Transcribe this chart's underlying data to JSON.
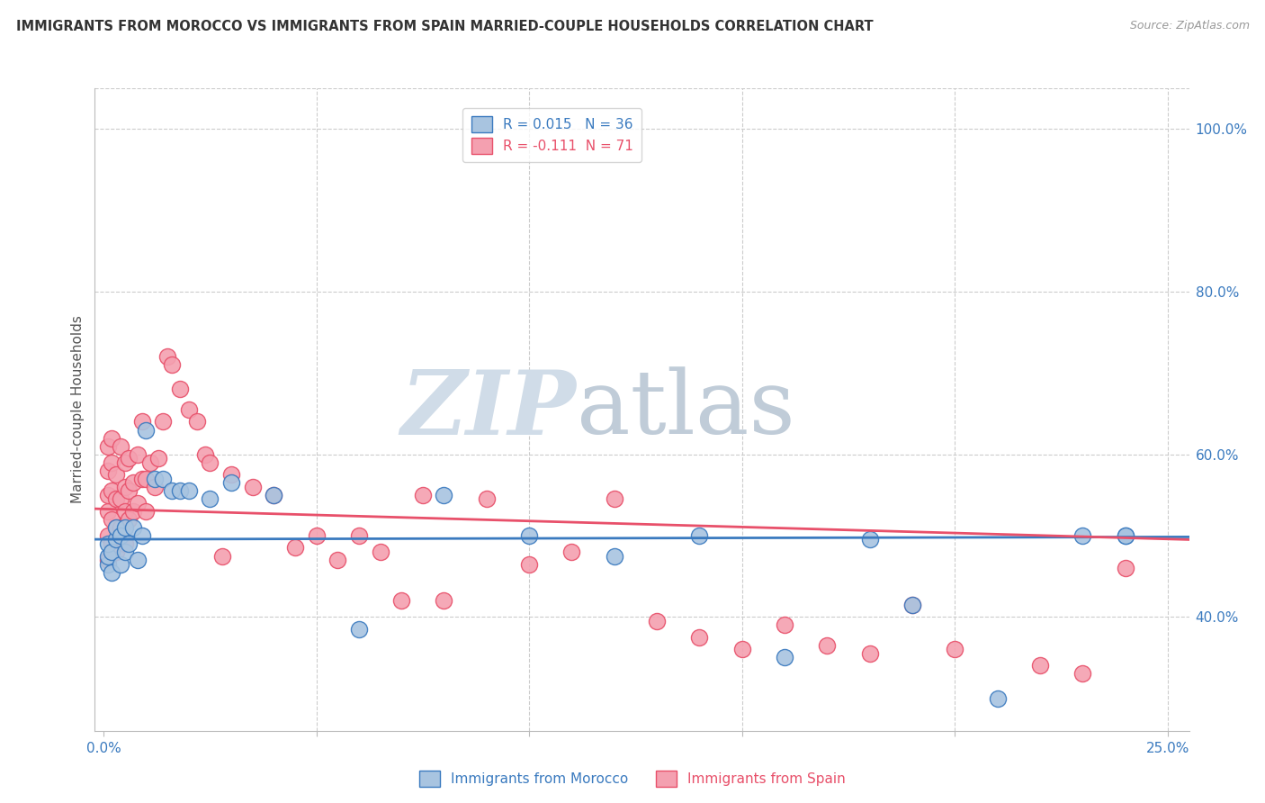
{
  "title": "IMMIGRANTS FROM MOROCCO VS IMMIGRANTS FROM SPAIN MARRIED-COUPLE HOUSEHOLDS CORRELATION CHART",
  "source": "Source: ZipAtlas.com",
  "ylabel": "Married-couple Households",
  "ytick_labels": [
    "40.0%",
    "60.0%",
    "80.0%",
    "100.0%"
  ],
  "ytick_values": [
    0.4,
    0.6,
    0.8,
    1.0
  ],
  "xlim": [
    -0.002,
    0.255
  ],
  "ylim": [
    0.26,
    1.05
  ],
  "blue_color": "#a8c4e0",
  "pink_color": "#f4a0b0",
  "blue_line_color": "#3a7abf",
  "pink_line_color": "#e8506a",
  "watermark_zip": "ZIP",
  "watermark_atlas": "atlas",
  "background_color": "#ffffff",
  "grid_color": "#cccccc",
  "morocco_x": [
    0.001,
    0.001,
    0.001,
    0.002,
    0.002,
    0.003,
    0.003,
    0.004,
    0.004,
    0.005,
    0.005,
    0.006,
    0.007,
    0.008,
    0.009,
    0.01,
    0.012,
    0.014,
    0.016,
    0.018,
    0.02,
    0.025,
    0.03,
    0.04,
    0.06,
    0.08,
    0.1,
    0.12,
    0.14,
    0.16,
    0.18,
    0.19,
    0.21,
    0.23,
    0.24,
    0.24
  ],
  "morocco_y": [
    0.465,
    0.475,
    0.49,
    0.455,
    0.48,
    0.495,
    0.51,
    0.465,
    0.5,
    0.48,
    0.51,
    0.49,
    0.51,
    0.47,
    0.5,
    0.63,
    0.57,
    0.57,
    0.555,
    0.555,
    0.555,
    0.545,
    0.565,
    0.55,
    0.385,
    0.55,
    0.5,
    0.475,
    0.5,
    0.35,
    0.495,
    0.415,
    0.3,
    0.5,
    0.5,
    0.5
  ],
  "spain_x": [
    0.001,
    0.001,
    0.001,
    0.001,
    0.001,
    0.001,
    0.002,
    0.002,
    0.002,
    0.002,
    0.002,
    0.003,
    0.003,
    0.003,
    0.003,
    0.004,
    0.004,
    0.004,
    0.005,
    0.005,
    0.005,
    0.005,
    0.006,
    0.006,
    0.006,
    0.007,
    0.007,
    0.008,
    0.008,
    0.009,
    0.009,
    0.01,
    0.01,
    0.011,
    0.012,
    0.013,
    0.014,
    0.015,
    0.016,
    0.018,
    0.02,
    0.022,
    0.024,
    0.025,
    0.028,
    0.03,
    0.035,
    0.04,
    0.045,
    0.05,
    0.055,
    0.06,
    0.065,
    0.07,
    0.075,
    0.08,
    0.09,
    0.1,
    0.11,
    0.12,
    0.13,
    0.14,
    0.15,
    0.16,
    0.17,
    0.18,
    0.19,
    0.2,
    0.22,
    0.23,
    0.24
  ],
  "spain_y": [
    0.47,
    0.5,
    0.53,
    0.55,
    0.58,
    0.61,
    0.49,
    0.52,
    0.555,
    0.59,
    0.62,
    0.48,
    0.51,
    0.545,
    0.575,
    0.51,
    0.545,
    0.61,
    0.49,
    0.53,
    0.56,
    0.59,
    0.52,
    0.555,
    0.595,
    0.53,
    0.565,
    0.54,
    0.6,
    0.57,
    0.64,
    0.53,
    0.57,
    0.59,
    0.56,
    0.595,
    0.64,
    0.72,
    0.71,
    0.68,
    0.655,
    0.64,
    0.6,
    0.59,
    0.475,
    0.575,
    0.56,
    0.55,
    0.485,
    0.5,
    0.47,
    0.5,
    0.48,
    0.42,
    0.55,
    0.42,
    0.545,
    0.465,
    0.48,
    0.545,
    0.395,
    0.375,
    0.36,
    0.39,
    0.365,
    0.355,
    0.415,
    0.36,
    0.34,
    0.33,
    0.46
  ]
}
